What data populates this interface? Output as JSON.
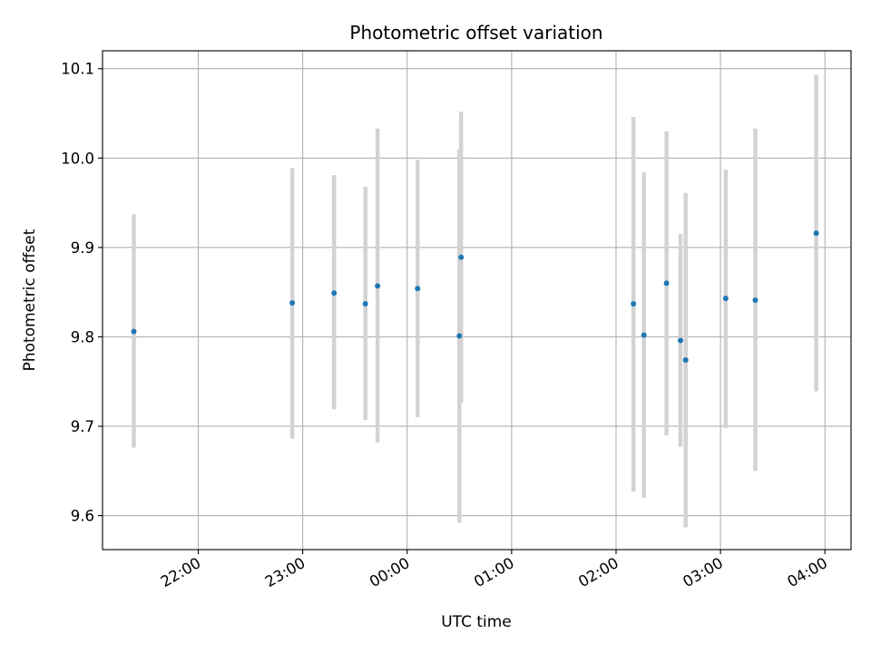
{
  "chart_data": {
    "type": "scatter",
    "title": "Photometric offset variation",
    "xlabel": "UTC time",
    "ylabel": "Photometric offset",
    "grid": true,
    "xlim": [
      "21:05",
      "04:15"
    ],
    "ylim": [
      9.562,
      10.12
    ],
    "x_ticks": [
      "22:00",
      "23:00",
      "00:00",
      "01:00",
      "02:00",
      "03:00",
      "04:00"
    ],
    "y_ticks": [
      "9.6",
      "9.7",
      "9.8",
      "9.9",
      "10.0",
      "10.1"
    ],
    "points": [
      {
        "x": "21:23",
        "y": 9.806,
        "err_low": 9.676,
        "err_high": 9.937
      },
      {
        "x": "22:54",
        "y": 9.838,
        "err_low": 9.686,
        "err_high": 9.989
      },
      {
        "x": "23:18",
        "y": 9.849,
        "err_low": 9.719,
        "err_high": 9.981
      },
      {
        "x": "23:36",
        "y": 9.837,
        "err_low": 9.707,
        "err_high": 9.968
      },
      {
        "x": "23:43",
        "y": 9.857,
        "err_low": 9.682,
        "err_high": 10.033
      },
      {
        "x": "00:06",
        "y": 9.854,
        "err_low": 9.71,
        "err_high": 9.998
      },
      {
        "x": "00:30",
        "y": 9.801,
        "err_low": 9.592,
        "err_high": 10.01
      },
      {
        "x": "00:31",
        "y": 9.889,
        "err_low": 9.726,
        "err_high": 10.052
      },
      {
        "x": "02:10",
        "y": 9.837,
        "err_low": 9.627,
        "err_high": 10.046
      },
      {
        "x": "02:16",
        "y": 9.802,
        "err_low": 9.62,
        "err_high": 9.984
      },
      {
        "x": "02:29",
        "y": 9.86,
        "err_low": 9.69,
        "err_high": 10.03
      },
      {
        "x": "02:37",
        "y": 9.796,
        "err_low": 9.677,
        "err_high": 9.915
      },
      {
        "x": "02:40",
        "y": 9.774,
        "err_low": 9.587,
        "err_high": 9.961
      },
      {
        "x": "03:03",
        "y": 9.843,
        "err_low": 9.698,
        "err_high": 9.987
      },
      {
        "x": "03:20",
        "y": 9.841,
        "err_low": 9.65,
        "err_high": 10.033
      },
      {
        "x": "03:55",
        "y": 9.916,
        "err_low": 9.739,
        "err_high": 10.093
      }
    ],
    "colors": {
      "points": "#1f77b4",
      "errorbars": "#d3d3d3",
      "grid": "#b0b0b0"
    }
  }
}
